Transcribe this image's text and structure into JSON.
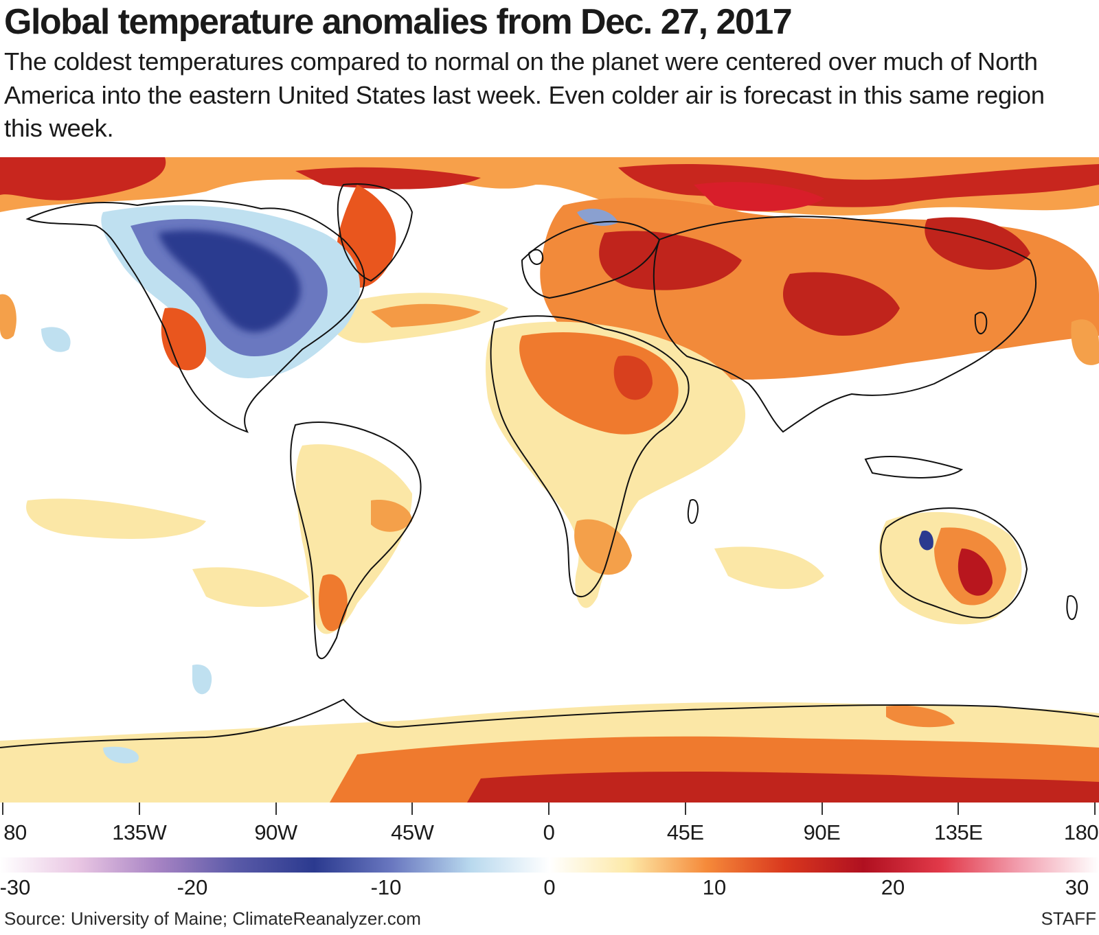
{
  "header": {
    "title": "Global temperature anomalies from Dec. 27, 2017",
    "subtitle": "The coldest temperatures compared to normal on the planet were centered over much of North America into the eastern United States last week. Even colder air is forecast in this same region this week."
  },
  "map": {
    "longitude_ticks": [
      "80",
      "135W",
      "90W",
      "45W",
      "0",
      "45E",
      "90E",
      "135E",
      "180"
    ],
    "anomaly_regions": [
      {
        "name": "north-america-cold",
        "lon": [
          -130,
          -65
        ],
        "lat": [
          28,
          65
        ],
        "level": "cold"
      },
      {
        "name": "siberia-warm",
        "lon": [
          60,
          150
        ],
        "lat": [
          45,
          75
        ],
        "level": "hot"
      },
      {
        "name": "europe-warm",
        "lon": [
          15,
          60
        ],
        "lat": [
          40,
          62
        ],
        "level": "hot"
      },
      {
        "name": "china-warm",
        "lon": [
          75,
          120
        ],
        "lat": [
          25,
          45
        ],
        "level": "hot"
      },
      {
        "name": "arctic-warm",
        "lon": [
          -180,
          180
        ],
        "lat": [
          72,
          88
        ],
        "level": "warm"
      },
      {
        "name": "africa-warm",
        "lon": [
          -15,
          45
        ],
        "lat": [
          0,
          25
        ],
        "level": "warm"
      },
      {
        "name": "australia-warm",
        "lon": [
          125,
          150
        ],
        "lat": [
          -38,
          -20
        ],
        "level": "hot"
      },
      {
        "name": "antarctica-warm",
        "lon": [
          -30,
          150
        ],
        "lat": [
          -88,
          -75
        ],
        "level": "warm"
      }
    ]
  },
  "colorbar": {
    "labels": [
      {
        "value": -30,
        "text": "-30"
      },
      {
        "value": -20,
        "text": "-20"
      },
      {
        "value": -10,
        "text": "-10"
      },
      {
        "value": 0,
        "text": "0"
      },
      {
        "value": 10,
        "text": "10"
      },
      {
        "value": 20,
        "text": "20"
      },
      {
        "value": 30,
        "text": "30"
      }
    ],
    "colors": [
      "#ffffff",
      "#e9c6e3",
      "#a884c4",
      "#5a5aa8",
      "#2b3a8f",
      "#6a78c0",
      "#b9d9ee",
      "#ffffff",
      "#fde9a8",
      "#f58a3a",
      "#d9381e",
      "#b01020",
      "#e23a4a",
      "#f2a0b0",
      "#ffffff"
    ]
  },
  "footer": {
    "source": "Source: University of Maine; ClimateReanalyzer.com",
    "credit": "STAFF"
  }
}
